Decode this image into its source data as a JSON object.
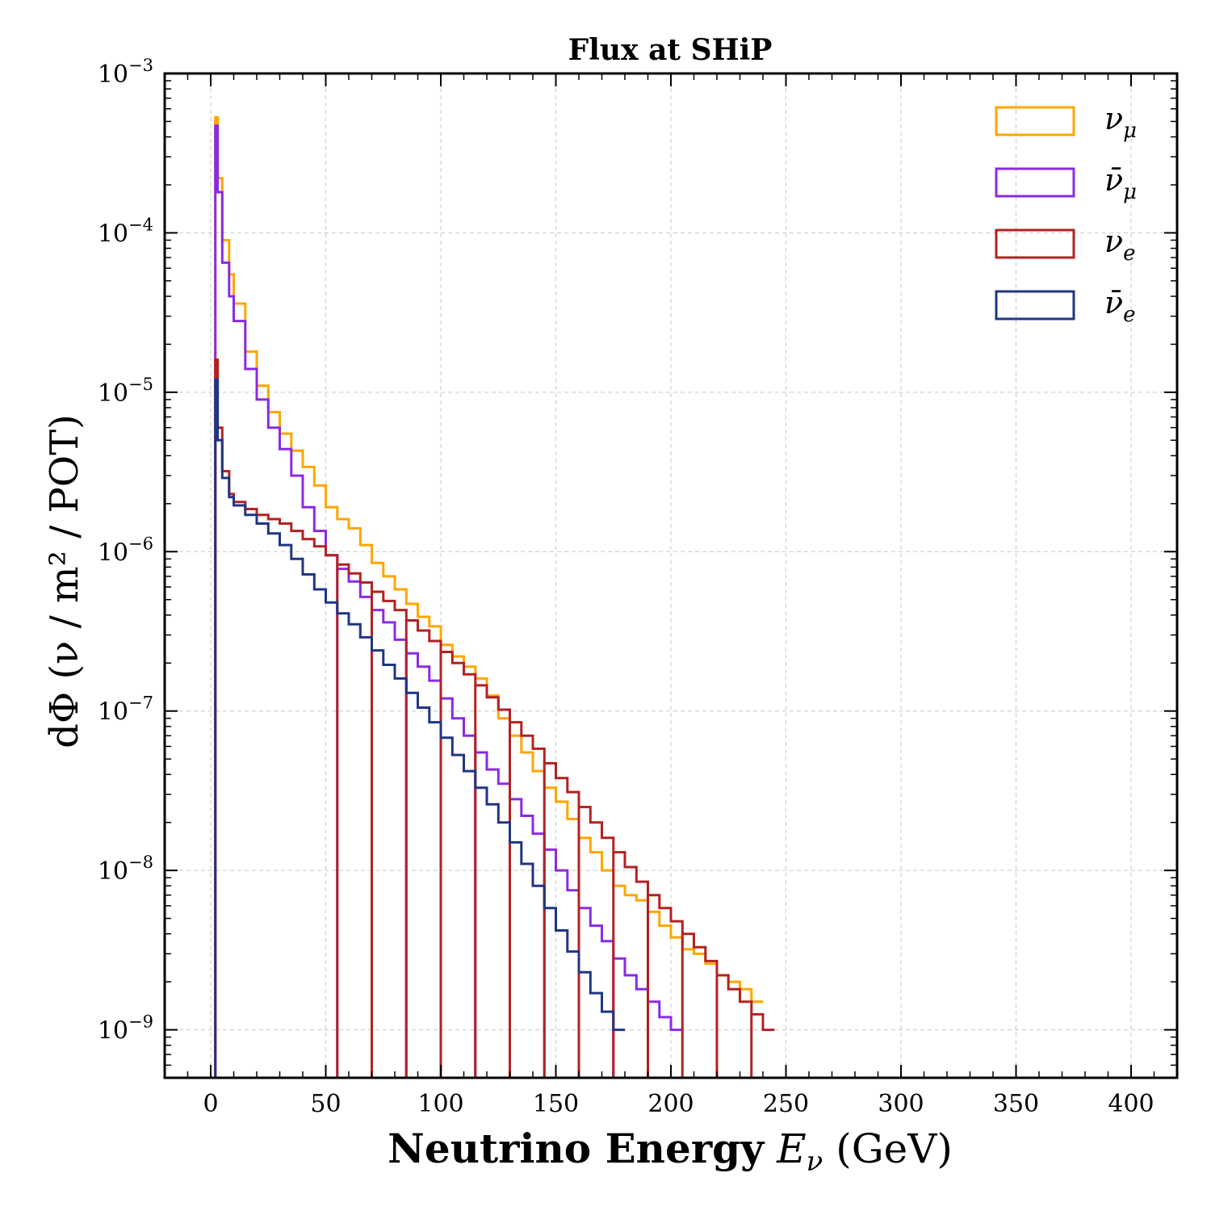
{
  "chart_data": {
    "type": "line",
    "title": "Flux at SHiP",
    "xlabel_bold": "Neutrino Energy",
    "xlabel_symbol": "E",
    "xlabel_symbol_sub": "ν",
    "xlabel_unit": "(GeV)",
    "ylabel": "dΦ (ν / m² / POT)",
    "xlim": [
      -20,
      420
    ],
    "ylim": [
      5e-10,
      0.001
    ],
    "yscale": "log",
    "grid": true,
    "legend_position": "top-right",
    "x_ticks": [
      0,
      50,
      100,
      150,
      200,
      250,
      300,
      350,
      400
    ],
    "y_tick_exponents": [
      -3,
      -4,
      -5,
      -6,
      -7,
      -8,
      -9
    ],
    "series": [
      {
        "name": "ν_μ",
        "label_base": "ν",
        "label_sub": "μ",
        "bar": false,
        "color": "#FFA500",
        "points": [
          [
            2,
            0.00053
          ],
          [
            3,
            0.00022
          ],
          [
            5,
            9e-05
          ],
          [
            8,
            5.5e-05
          ],
          [
            10,
            3.6e-05
          ],
          [
            15,
            1.8e-05
          ],
          [
            20,
            1.1e-05
          ],
          [
            25,
            7.5e-06
          ],
          [
            30,
            5.5e-06
          ],
          [
            35,
            4.3e-06
          ],
          [
            40,
            3.4e-06
          ],
          [
            45,
            2.6e-06
          ],
          [
            50,
            1.9e-06
          ],
          [
            55,
            1.6e-06
          ],
          [
            60,
            1.4e-06
          ],
          [
            65,
            1.1e-06
          ],
          [
            70,
            8.5e-07
          ],
          [
            75,
            7e-07
          ],
          [
            80,
            5.8e-07
          ],
          [
            85,
            4.7e-07
          ],
          [
            90,
            3.9e-07
          ],
          [
            95,
            3.4e-07
          ],
          [
            100,
            2.6e-07
          ],
          [
            105,
            2.2e-07
          ],
          [
            110,
            1.9e-07
          ],
          [
            115,
            1.6e-07
          ],
          [
            120,
            1.25e-07
          ],
          [
            125,
            9e-08
          ],
          [
            130,
            7e-08
          ],
          [
            135,
            5.5e-08
          ],
          [
            140,
            4.2e-08
          ],
          [
            145,
            3.3e-08
          ],
          [
            150,
            2.7e-08
          ],
          [
            155,
            2.1e-08
          ],
          [
            160,
            1.6e-08
          ],
          [
            165,
            1.3e-08
          ],
          [
            170,
            1e-08
          ],
          [
            175,
            8e-09
          ],
          [
            180,
            7e-09
          ],
          [
            185,
            6.5e-09
          ],
          [
            190,
            5.5e-09
          ],
          [
            195,
            4.5e-09
          ],
          [
            200,
            3.8e-09
          ],
          [
            205,
            3.2e-09
          ],
          [
            210,
            3e-09
          ],
          [
            215,
            2.6e-09
          ],
          [
            220,
            2.2e-09
          ],
          [
            225,
            2e-09
          ],
          [
            230,
            1.8e-09
          ],
          [
            235,
            1.5e-09
          ]
        ]
      },
      {
        "name": "ν̄_μ",
        "label_base": "ν̄",
        "label_sub": "μ",
        "bar": true,
        "color": "#8A2BE2",
        "points": [
          [
            2,
            0.00047
          ],
          [
            3,
            0.00018
          ],
          [
            5,
            6.5e-05
          ],
          [
            8,
            4e-05
          ],
          [
            10,
            2.8e-05
          ],
          [
            15,
            1.4e-05
          ],
          [
            20,
            9e-06
          ],
          [
            25,
            6e-06
          ],
          [
            30,
            4.4e-06
          ],
          [
            35,
            3e-06
          ],
          [
            40,
            1.9e-06
          ],
          [
            45,
            1.35e-06
          ],
          [
            50,
            9.5e-07
          ],
          [
            55,
            7.8e-07
          ],
          [
            60,
            6.5e-07
          ],
          [
            65,
            5.2e-07
          ],
          [
            70,
            4.3e-07
          ],
          [
            75,
            3.6e-07
          ],
          [
            80,
            2.8e-07
          ],
          [
            85,
            2.3e-07
          ],
          [
            90,
            1.9e-07
          ],
          [
            95,
            1.55e-07
          ],
          [
            100,
            1.2e-07
          ],
          [
            105,
            9e-08
          ],
          [
            110,
            7e-08
          ],
          [
            115,
            5.5e-08
          ],
          [
            120,
            4.3e-08
          ],
          [
            125,
            3.5e-08
          ],
          [
            130,
            2.8e-08
          ],
          [
            135,
            2.2e-08
          ],
          [
            140,
            1.7e-08
          ],
          [
            145,
            1.35e-08
          ],
          [
            150,
            1e-08
          ],
          [
            155,
            7.5e-09
          ],
          [
            160,
            5.8e-09
          ],
          [
            165,
            4.5e-09
          ],
          [
            170,
            3.6e-09
          ],
          [
            175,
            2.8e-09
          ],
          [
            180,
            2.2e-09
          ],
          [
            185,
            1.8e-09
          ],
          [
            190,
            1.5e-09
          ],
          [
            195,
            1.2e-09
          ],
          [
            200,
            1e-09
          ]
        ]
      },
      {
        "name": "ν_e",
        "label_base": "ν",
        "label_sub": "e",
        "bar": true,
        "color": "#B22222",
        "points": [
          [
            2,
            1.6e-05
          ],
          [
            3,
            6e-06
          ],
          [
            5,
            3.2e-06
          ],
          [
            8,
            2.3e-06
          ],
          [
            10,
            2.05e-06
          ],
          [
            15,
            1.85e-06
          ],
          [
            20,
            1.7e-06
          ],
          [
            25,
            1.6e-06
          ],
          [
            30,
            1.5e-06
          ],
          [
            35,
            1.35e-06
          ],
          [
            40,
            1.2e-06
          ],
          [
            45,
            1.08e-06
          ],
          [
            50,
            9.5e-07
          ],
          [
            55,
            8.3e-07
          ],
          [
            60,
            7.3e-07
          ],
          [
            65,
            6.4e-07
          ],
          [
            70,
            5.6e-07
          ],
          [
            75,
            4.9e-07
          ],
          [
            80,
            4.3e-07
          ],
          [
            85,
            3.7e-07
          ],
          [
            90,
            3.2e-07
          ],
          [
            95,
            2.75e-07
          ],
          [
            100,
            2.35e-07
          ],
          [
            105,
            2e-07
          ],
          [
            110,
            1.7e-07
          ],
          [
            115,
            1.45e-07
          ],
          [
            120,
            1.22e-07
          ],
          [
            125,
            1.02e-07
          ],
          [
            130,
            8.5e-08
          ],
          [
            135,
            7e-08
          ],
          [
            140,
            5.8e-08
          ],
          [
            145,
            4.7e-08
          ],
          [
            150,
            3.8e-08
          ],
          [
            155,
            3.1e-08
          ],
          [
            160,
            2.5e-08
          ],
          [
            165,
            2e-08
          ],
          [
            170,
            1.6e-08
          ],
          [
            175,
            1.3e-08
          ],
          [
            180,
            1.05e-08
          ],
          [
            185,
            8.5e-09
          ],
          [
            190,
            7e-09
          ],
          [
            195,
            5.8e-09
          ],
          [
            200,
            4.8e-09
          ],
          [
            205,
            4e-09
          ],
          [
            210,
            3.3e-09
          ],
          [
            215,
            2.7e-09
          ],
          [
            220,
            2.2e-09
          ],
          [
            225,
            1.8e-09
          ],
          [
            230,
            1.5e-09
          ],
          [
            235,
            1.25e-09
          ],
          [
            240,
            1e-09
          ]
        ]
      },
      {
        "name": "ν̄_e",
        "label_base": "ν̄",
        "label_sub": "e",
        "bar": false,
        "color": "#1F3684",
        "points": [
          [
            2,
            1.2e-05
          ],
          [
            3,
            5e-06
          ],
          [
            5,
            2.9e-06
          ],
          [
            8,
            2.2e-06
          ],
          [
            10,
            1.95e-06
          ],
          [
            15,
            1.7e-06
          ],
          [
            20,
            1.5e-06
          ],
          [
            25,
            1.3e-06
          ],
          [
            30,
            1.1e-06
          ],
          [
            35,
            9e-07
          ],
          [
            40,
            7.2e-07
          ],
          [
            45,
            5.8e-07
          ],
          [
            50,
            4.8e-07
          ],
          [
            55,
            4.1e-07
          ],
          [
            60,
            3.5e-07
          ],
          [
            65,
            2.9e-07
          ],
          [
            70,
            2.4e-07
          ],
          [
            75,
            1.95e-07
          ],
          [
            80,
            1.6e-07
          ],
          [
            85,
            1.3e-07
          ],
          [
            90,
            1.05e-07
          ],
          [
            95,
            8.5e-08
          ],
          [
            100,
            6.8e-08
          ],
          [
            105,
            5.3e-08
          ],
          [
            110,
            4.2e-08
          ],
          [
            115,
            3.3e-08
          ],
          [
            120,
            2.6e-08
          ],
          [
            125,
            2e-08
          ],
          [
            130,
            1.5e-08
          ],
          [
            135,
            1.1e-08
          ],
          [
            140,
            8e-09
          ],
          [
            145,
            5.8e-09
          ],
          [
            150,
            4.2e-09
          ],
          [
            155,
            3.1e-09
          ],
          [
            160,
            2.3e-09
          ],
          [
            165,
            1.7e-09
          ],
          [
            170,
            1.3e-09
          ],
          [
            175,
            1e-09
          ]
        ]
      }
    ]
  }
}
